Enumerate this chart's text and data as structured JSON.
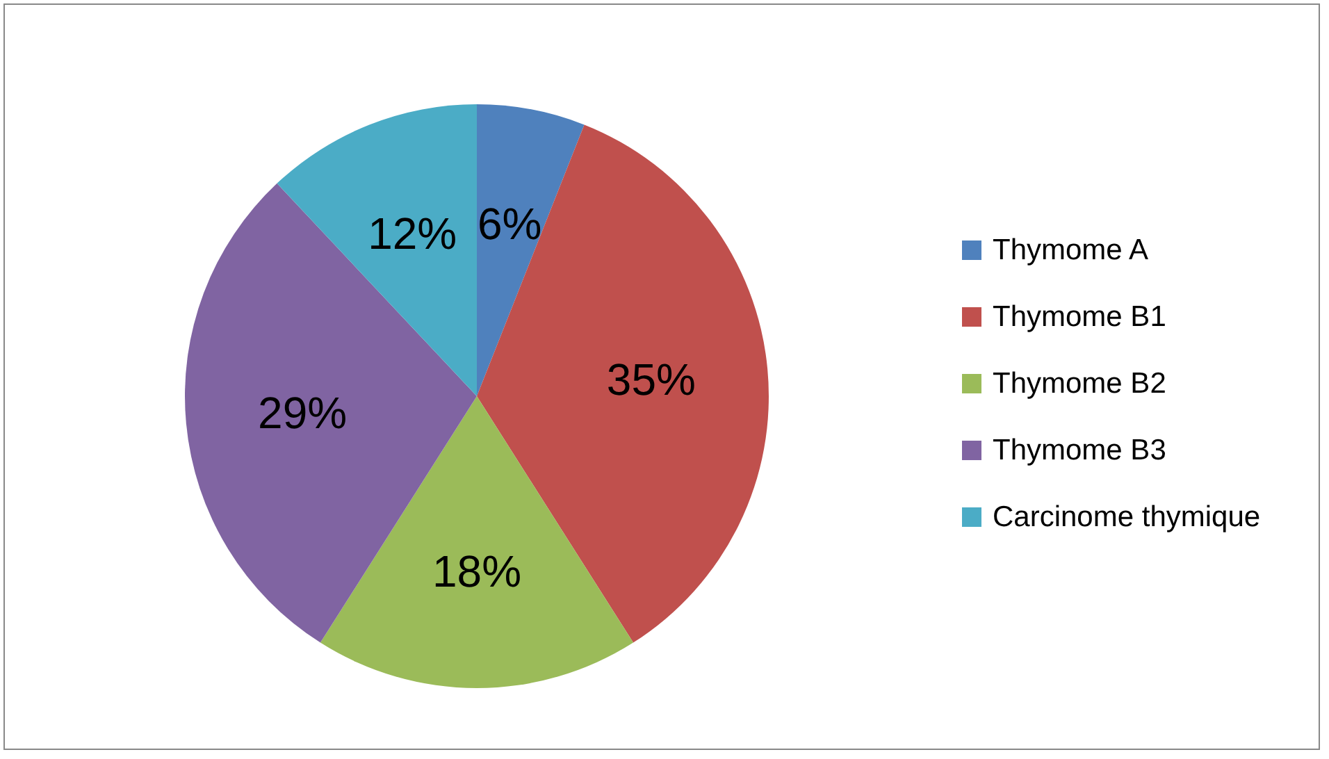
{
  "chart_data": {
    "type": "pie",
    "categories": [
      "Thymome A",
      "Thymome B1",
      "Thymome B2",
      "Thymome B3",
      "Carcinome thymique"
    ],
    "values": [
      6,
      35,
      18,
      29,
      12
    ],
    "colors": [
      "#4f81bd",
      "#c0504d",
      "#9bbb59",
      "#8064a2",
      "#4bacc6"
    ],
    "value_labels": [
      "6%",
      "35%",
      "18%",
      "29%",
      "12%"
    ],
    "legend": "right"
  }
}
